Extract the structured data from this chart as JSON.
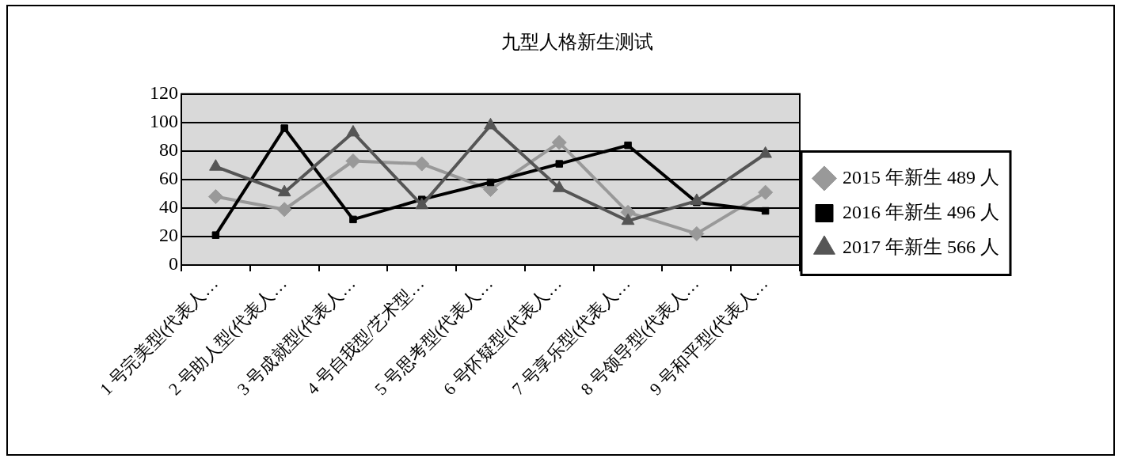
{
  "chart_data": {
    "type": "line",
    "title": "九型人格新生测试",
    "categories": [
      "1 号完美型(代表人…",
      "2 号助人型(代表人…",
      "3 号成就型(代表人…",
      "4 号自我型/艺术型…",
      "5 号思考型(代表人…",
      "6 号怀疑型(代表人…",
      "7 号享乐型(代表人…",
      "8 号领导型(代表人…",
      "9 号和平型(代表人…"
    ],
    "series": [
      {
        "name": "2015 年新生 489 人",
        "color": "#999999",
        "marker": "diamond",
        "values": [
          48,
          39,
          73,
          71,
          53,
          86,
          37,
          22,
          51
        ]
      },
      {
        "name": "2016 年新生 496 人",
        "color": "#000000",
        "marker": "square",
        "values": [
          21,
          96,
          32,
          46,
          58,
          71,
          84,
          44,
          38
        ]
      },
      {
        "name": "2017 年新生 566 人",
        "color": "#555555",
        "marker": "triangle",
        "values": [
          69,
          51,
          93,
          42,
          98,
          54,
          31,
          45,
          78
        ]
      }
    ],
    "ylim": [
      0,
      120
    ],
    "yticks": [
      0,
      20,
      40,
      60,
      80,
      100,
      120
    ],
    "grid": "y",
    "legend": "right",
    "line_style": "solid"
  }
}
